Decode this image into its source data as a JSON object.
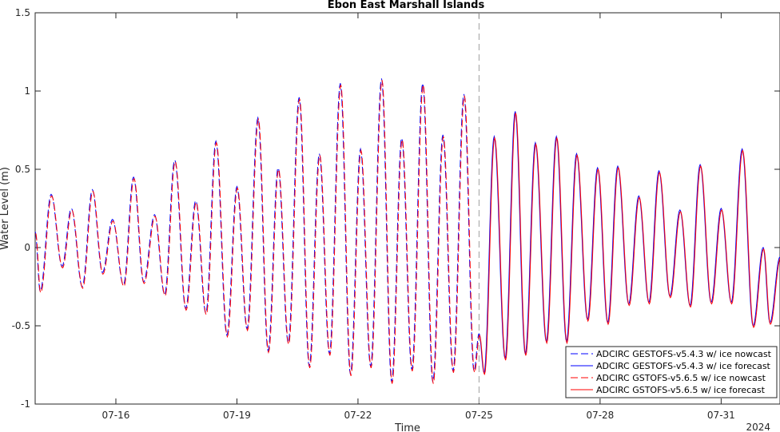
{
  "chart_data": {
    "type": "line",
    "title": "Ebon East Marshall Islands",
    "xlabel": "Time",
    "ylabel": "Water Level (m)",
    "year_label": "2024",
    "ylim": [
      -1,
      1.5
    ],
    "yticks": [
      -1,
      -0.5,
      0,
      0.5,
      1,
      1.5
    ],
    "ytick_labels": [
      "-1",
      "-0.5",
      "0",
      "0.5",
      "1",
      "1.5"
    ],
    "xlim": [
      "2024-07-14T00:00",
      "2024-08-01T11:00"
    ],
    "xticks": [
      "2024-07-16",
      "2024-07-19",
      "2024-07-22",
      "2024-07-25",
      "2024-07-28",
      "2024-07-31"
    ],
    "xtick_labels": [
      "07-16",
      "07-19",
      "07-22",
      "07-25",
      "07-28",
      "07-31"
    ],
    "forecast_start": "2024-07-25T00:00",
    "grid": false,
    "legend_position": "bottom-right",
    "nowcast_extrema": [
      [
        "2024-07-14T00:00",
        0.1
      ],
      [
        "2024-07-14T03:00",
        -0.28
      ],
      [
        "2024-07-14T09:30",
        0.34
      ],
      [
        "2024-07-14T16:00",
        -0.12
      ],
      [
        "2024-07-14T21:30",
        0.25
      ],
      [
        "2024-07-15T04:00",
        -0.25
      ],
      [
        "2024-07-15T10:00",
        0.37
      ],
      [
        "2024-07-15T16:00",
        -0.16
      ],
      [
        "2024-07-15T22:00",
        0.18
      ],
      [
        "2024-07-16T04:30",
        -0.24
      ],
      [
        "2024-07-16T10:30",
        0.45
      ],
      [
        "2024-07-16T16:30",
        -0.22
      ],
      [
        "2024-07-16T23:00",
        0.21
      ],
      [
        "2024-07-17T05:00",
        -0.3
      ],
      [
        "2024-07-17T11:00",
        0.56
      ],
      [
        "2024-07-17T17:30",
        -0.39
      ],
      [
        "2024-07-17T23:30",
        0.3
      ],
      [
        "2024-07-18T05:30",
        -0.42
      ],
      [
        "2024-07-18T11:30",
        0.68
      ],
      [
        "2024-07-18T18:00",
        -0.56
      ],
      [
        "2024-07-19T00:00",
        0.39
      ],
      [
        "2024-07-19T06:00",
        -0.52
      ],
      [
        "2024-07-19T12:30",
        0.83
      ],
      [
        "2024-07-19T18:30",
        -0.66
      ],
      [
        "2024-07-20T00:30",
        0.51
      ],
      [
        "2024-07-20T06:30",
        -0.61
      ],
      [
        "2024-07-20T13:00",
        0.96
      ],
      [
        "2024-07-20T19:00",
        -0.76
      ],
      [
        "2024-07-21T01:00",
        0.6
      ],
      [
        "2024-07-21T07:00",
        -0.68
      ],
      [
        "2024-07-21T13:30",
        1.05
      ],
      [
        "2024-07-21T19:30",
        -0.81
      ],
      [
        "2024-07-22T01:30",
        0.63
      ],
      [
        "2024-07-22T07:30",
        -0.76
      ],
      [
        "2024-07-22T14:00",
        1.08
      ],
      [
        "2024-07-22T20:00",
        -0.86
      ],
      [
        "2024-07-23T02:00",
        0.7
      ],
      [
        "2024-07-23T08:00",
        -0.78
      ],
      [
        "2024-07-23T14:30",
        1.05
      ],
      [
        "2024-07-23T20:30",
        -0.86
      ],
      [
        "2024-07-24T02:30",
        0.72
      ],
      [
        "2024-07-24T08:30",
        -0.79
      ],
      [
        "2024-07-24T15:00",
        0.98
      ],
      [
        "2024-07-24T21:00",
        -0.79
      ],
      [
        "2024-07-25T00:00",
        -0.55
      ]
    ],
    "forecast_extrema": [
      [
        "2024-07-25T00:00",
        -0.55
      ],
      [
        "2024-07-25T03:00",
        -0.8
      ],
      [
        "2024-07-25T09:00",
        0.71
      ],
      [
        "2024-07-25T15:30",
        -0.71
      ],
      [
        "2024-07-25T21:30",
        0.87
      ],
      [
        "2024-07-26T03:30",
        -0.68
      ],
      [
        "2024-07-26T09:30",
        0.67
      ],
      [
        "2024-07-26T16:00",
        -0.6
      ],
      [
        "2024-07-26T22:00",
        0.71
      ],
      [
        "2024-07-27T04:00",
        -0.6
      ],
      [
        "2024-07-27T10:00",
        0.6
      ],
      [
        "2024-07-27T16:30",
        -0.46
      ],
      [
        "2024-07-27T22:30",
        0.51
      ],
      [
        "2024-07-28T04:30",
        -0.48
      ],
      [
        "2024-07-28T10:30",
        0.52
      ],
      [
        "2024-07-28T17:00",
        -0.36
      ],
      [
        "2024-07-28T23:00",
        0.33
      ],
      [
        "2024-07-29T05:00",
        -0.35
      ],
      [
        "2024-07-29T11:00",
        0.49
      ],
      [
        "2024-07-29T17:30",
        -0.31
      ],
      [
        "2024-07-29T23:30",
        0.24
      ],
      [
        "2024-07-30T05:30",
        -0.37
      ],
      [
        "2024-07-30T11:30",
        0.53
      ],
      [
        "2024-07-30T18:00",
        -0.35
      ],
      [
        "2024-07-31T00:00",
        0.25
      ],
      [
        "2024-07-31T06:00",
        -0.35
      ],
      [
        "2024-07-31T12:30",
        0.63
      ],
      [
        "2024-07-31T19:00",
        -0.5
      ],
      [
        "2024-08-01T01:00",
        0.0
      ],
      [
        "2024-08-01T05:00",
        -0.48
      ],
      [
        "2024-08-01T11:00",
        -0.06
      ]
    ],
    "series": [
      {
        "name": "ADCIRC GESTOFS-v5.4.3 w/ ice nowcast",
        "phase": "nowcast",
        "color": "#0000ff",
        "dash": "dashed"
      },
      {
        "name": "ADCIRC GESTOFS-v5.4.3 w/ ice forecast",
        "phase": "forecast",
        "color": "#0000ff",
        "dash": "solid"
      },
      {
        "name": "ADCIRC GSTOFS-v5.6.5 w/ ice nowcast",
        "phase": "nowcast",
        "color": "#ff0000",
        "dash": "dashed"
      },
      {
        "name": "ADCIRC GSTOFS-v5.6.5 w/ ice forecast",
        "phase": "forecast",
        "color": "#ff0000",
        "dash": "solid"
      }
    ]
  }
}
